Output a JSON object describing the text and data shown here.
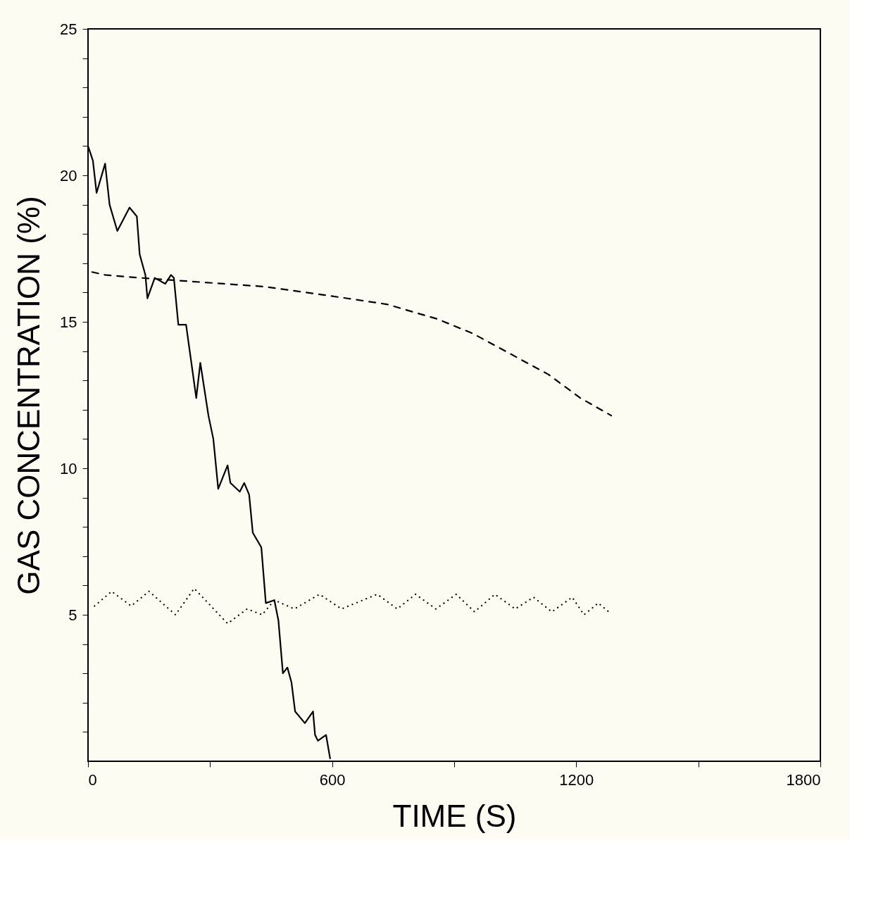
{
  "chart_data": {
    "type": "line",
    "xlabel": "TIME (S)",
    "ylabel": "GAS CONCENTRATION (%)",
    "xlim": [
      0,
      1800
    ],
    "ylim": [
      0,
      25
    ],
    "xticks": [
      0,
      {
        "value": 300,
        "label": null
      },
      600,
      {
        "value": 900,
        "label": null
      },
      1200,
      {
        "value": 1500,
        "label": null
      },
      1800
    ],
    "yticks": [
      {
        "value": 1,
        "label": null
      },
      {
        "value": 2,
        "label": null
      },
      {
        "value": 3,
        "label": null
      },
      {
        "value": 4,
        "label": null
      },
      5,
      {
        "value": 6,
        "label": null
      },
      {
        "value": 7,
        "label": null
      },
      {
        "value": 8,
        "label": null
      },
      {
        "value": 9,
        "label": null
      },
      10,
      {
        "value": 11,
        "label": null
      },
      {
        "value": 12,
        "label": null
      },
      {
        "value": 13,
        "label": null
      },
      {
        "value": 14,
        "label": null
      },
      15,
      {
        "value": 16,
        "label": null
      },
      {
        "value": 17,
        "label": null
      },
      {
        "value": 18,
        "label": null
      },
      {
        "value": 19,
        "label": null
      },
      20,
      {
        "value": 21,
        "label": null
      },
      {
        "value": 22,
        "label": null
      },
      {
        "value": 23,
        "label": null
      },
      {
        "value": 24,
        "label": null
      },
      25
    ],
    "grid": false,
    "series": [
      {
        "color": "#000000",
        "line_style": "solid",
        "x": [
          0,
          12,
          21,
          42,
          53,
          72,
          102,
          120,
          127,
          141,
          146,
          164,
          190,
          204,
          211,
          222,
          241,
          266,
          276,
          296,
          308,
          320,
          343,
          350,
          373,
          384,
          396,
          405,
          426,
          437,
          458,
          468,
          479,
          490,
          500,
          509,
          533,
          553,
          558,
          565,
          585,
          595
        ],
        "values": [
          21.0,
          20.5,
          19.4,
          20.4,
          19.0,
          18.1,
          18.9,
          18.6,
          17.3,
          16.6,
          15.8,
          16.5,
          16.3,
          16.6,
          16.5,
          14.9,
          14.9,
          12.4,
          13.6,
          11.8,
          11.0,
          9.3,
          10.1,
          9.5,
          9.2,
          9.5,
          9.1,
          7.8,
          7.3,
          5.4,
          5.5,
          4.8,
          3.0,
          3.2,
          2.7,
          1.7,
          1.3,
          1.7,
          0.9,
          0.7,
          0.9,
          0.1
        ]
      },
      {
        "color": "#000000",
        "line_style": "dashed",
        "x": [
          10,
          42,
          130,
          333,
          435,
          537,
          638,
          734,
          858,
          946,
          1039,
          1132,
          1210,
          1286
        ],
        "values": [
          16.7,
          16.6,
          16.5,
          16.3,
          16.2,
          16.0,
          15.8,
          15.6,
          15.1,
          14.6,
          13.9,
          13.2,
          12.4,
          11.8
        ]
      },
      {
        "color": "#000000",
        "line_style": "dotted",
        "x": [
          16,
          58,
          106,
          150,
          215,
          261,
          343,
          391,
          428,
          458,
          507,
          569,
          623,
          711,
          760,
          805,
          855,
          905,
          950,
          1000,
          1050,
          1095,
          1140,
          1190,
          1219,
          1254,
          1280
        ],
        "values": [
          5.3,
          5.8,
          5.3,
          5.8,
          5.0,
          5.9,
          4.7,
          5.2,
          5.0,
          5.5,
          5.2,
          5.7,
          5.2,
          5.7,
          5.2,
          5.7,
          5.2,
          5.7,
          5.1,
          5.7,
          5.2,
          5.6,
          5.1,
          5.6,
          5.0,
          5.4,
          5.1
        ]
      }
    ]
  }
}
